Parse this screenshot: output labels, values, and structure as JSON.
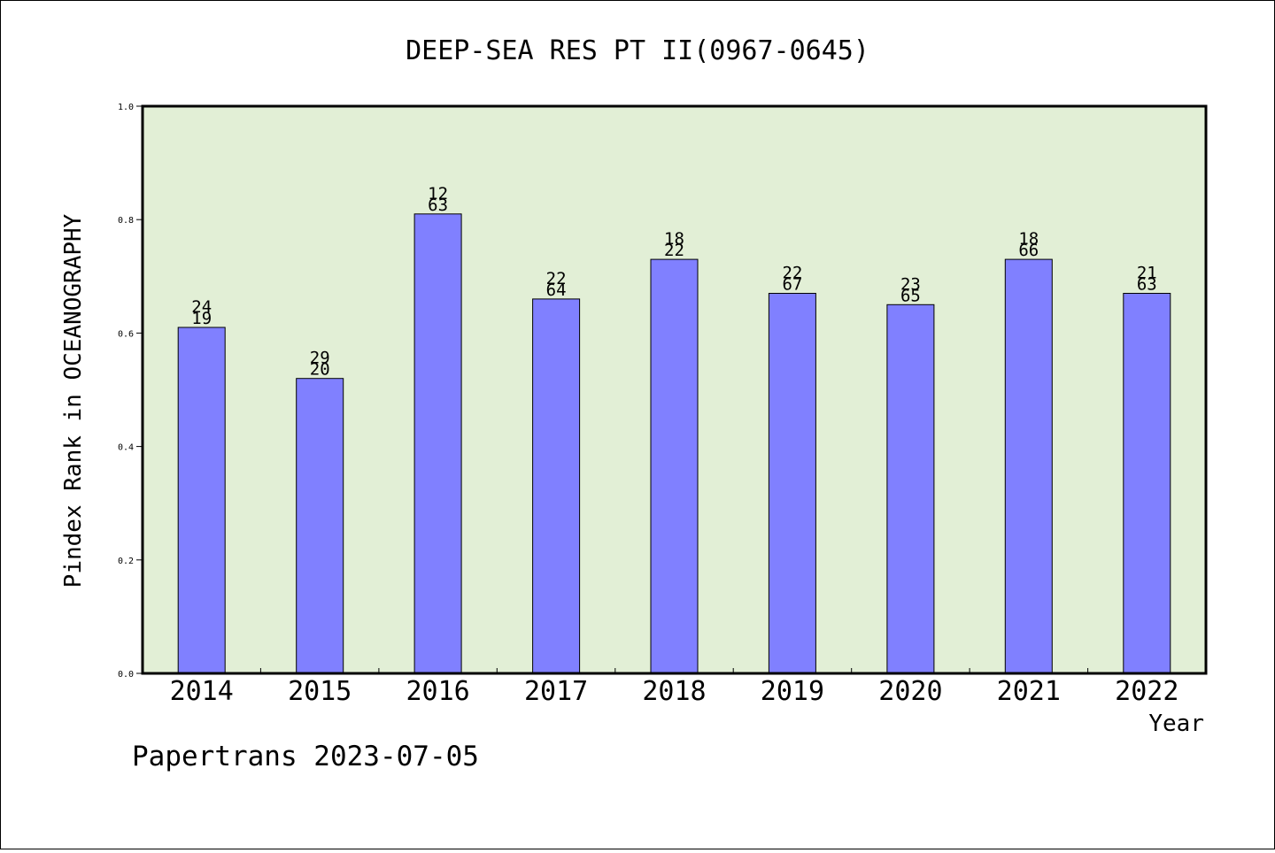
{
  "chart_data": {
    "type": "bar",
    "title": "DEEP-SEA RES PT II(0967-0645)",
    "xlabel": "Year",
    "ylabel": "Pindex Rank in OCEANOGRAPHY",
    "footer": "Papertrans 2023-07-05",
    "categories": [
      "2014",
      "2015",
      "2016",
      "2017",
      "2018",
      "2019",
      "2020",
      "2021",
      "2022"
    ],
    "values": [
      0.61,
      0.52,
      0.81,
      0.66,
      0.73,
      0.67,
      0.65,
      0.73,
      0.67
    ],
    "labels_top": [
      "24",
      "29",
      "12",
      "22",
      "18",
      "22",
      "23",
      "18",
      "21"
    ],
    "labels_bottom": [
      "19",
      "20",
      "63",
      "64",
      "22",
      "67",
      "65",
      "66",
      "63"
    ],
    "ylim": [
      0,
      1.0
    ],
    "yticks": [
      "0.0",
      "0.2",
      "0.4",
      "0.6",
      "0.8",
      "1.0"
    ],
    "grid": false,
    "colors": {
      "bar": "#8080ff",
      "plot_background": "#e2efd6",
      "axis": "#000000"
    }
  }
}
